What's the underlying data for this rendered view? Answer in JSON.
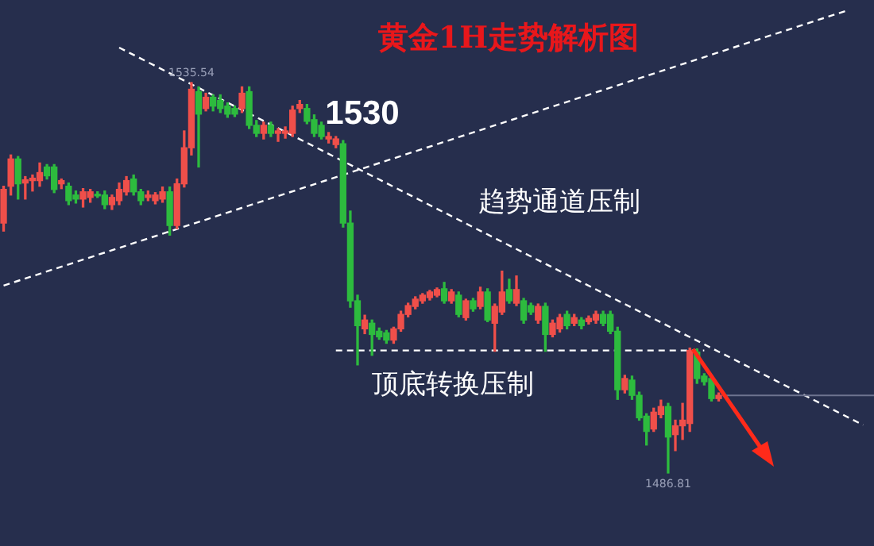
{
  "chart_data": {
    "type": "candlestick",
    "title": "黄金1H走势解析图",
    "categories": [
      null,
      null,
      null,
      null,
      null,
      null,
      null,
      null,
      null,
      null,
      null,
      null,
      null,
      null,
      null,
      null,
      null,
      null,
      null,
      null,
      null,
      null,
      null,
      null,
      null,
      null,
      null,
      null,
      null,
      null,
      null,
      null,
      null,
      null,
      null,
      null,
      null,
      null,
      null,
      null,
      null,
      null,
      null,
      null,
      null,
      null,
      null,
      null,
      null,
      null,
      null,
      null,
      null,
      null,
      null,
      null,
      null,
      null,
      null,
      null,
      null,
      null,
      null,
      null,
      null,
      null,
      null,
      null,
      null,
      null,
      null,
      null,
      null,
      null,
      null,
      null,
      null,
      null,
      null,
      null,
      null,
      null,
      null,
      null,
      null,
      null,
      null,
      null,
      null,
      null,
      null,
      null,
      null,
      null,
      null,
      null,
      null,
      null,
      null,
      null,
      null,
      null,
      null,
      null,
      null,
      null,
      null,
      null,
      null,
      null,
      null,
      null,
      null,
      null,
      null,
      null,
      null,
      null,
      null,
      null,
      null
    ],
    "ohlc": [
      [
        1518.0,
        1522.6,
        1517.0,
        1522.2
      ],
      [
        1522.6,
        1526.5,
        1521.5,
        1526.0
      ],
      [
        1526.0,
        1526.3,
        1521.0,
        1522.9
      ],
      [
        1523.0,
        1523.8,
        1521.0,
        1523.4
      ],
      [
        1523.3,
        1524.0,
        1522.0,
        1523.6
      ],
      [
        1523.3,
        1525.5,
        1522.6,
        1524.3
      ],
      [
        1525.0,
        1525.3,
        1523.5,
        1523.9
      ],
      [
        1525.0,
        1525.3,
        1521.8,
        1522.2
      ],
      [
        1522.9,
        1523.5,
        1522.3,
        1523.3
      ],
      [
        1522.6,
        1523.0,
        1520.3,
        1520.8
      ],
      [
        1521.5,
        1522.0,
        1520.5,
        1521.0
      ],
      [
        1521.0,
        1522.3,
        1520.0,
        1521.9
      ],
      [
        1521.2,
        1522.2,
        1520.6,
        1521.9
      ],
      [
        1521.6,
        1521.9,
        1521.2,
        1521.4
      ],
      [
        1521.5,
        1522.0,
        1519.8,
        1520.3
      ],
      [
        1520.3,
        1521.5,
        1519.7,
        1521.2
      ],
      [
        1520.8,
        1523.0,
        1520.3,
        1522.2
      ],
      [
        1521.9,
        1523.8,
        1521.5,
        1523.3
      ],
      [
        1523.5,
        1524.0,
        1521.5,
        1521.9
      ],
      [
        1521.9,
        1522.2,
        1520.3,
        1520.8
      ],
      [
        1521.2,
        1522.0,
        1520.8,
        1521.5
      ],
      [
        1520.8,
        1521.8,
        1520.4,
        1521.5
      ],
      [
        1521.0,
        1522.5,
        1520.6,
        1521.9
      ],
      [
        1521.9,
        1522.5,
        1516.5,
        1517.7
      ],
      [
        1517.7,
        1523.5,
        1517.3,
        1522.9
      ],
      [
        1522.9,
        1529.5,
        1522.5,
        1527.4
      ],
      [
        1527.4,
        1535.54,
        1526.5,
        1534.7
      ],
      [
        1534.4,
        1535.0,
        1525.0,
        1531.6
      ],
      [
        1532.3,
        1534.2,
        1532.0,
        1533.7
      ],
      [
        1533.7,
        1534.0,
        1532.0,
        1532.6
      ],
      [
        1533.3,
        1534.0,
        1531.8,
        1532.3
      ],
      [
        1532.6,
        1533.0,
        1531.2,
        1531.6
      ],
      [
        1532.3,
        1532.6,
        1531.3,
        1531.6
      ],
      [
        1532.3,
        1535.0,
        1531.8,
        1534.2
      ],
      [
        1534.4,
        1535.0,
        1529.8,
        1530.2
      ],
      [
        1530.2,
        1530.8,
        1528.8,
        1529.2
      ],
      [
        1529.2,
        1530.6,
        1528.5,
        1530.2
      ],
      [
        1530.2,
        1530.6,
        1528.8,
        1529.2
      ],
      [
        1529.2,
        1529.8,
        1528.2,
        1529.5
      ],
      [
        1529.2,
        1530.0,
        1528.6,
        1529.5
      ],
      [
        1529.2,
        1532.6,
        1528.8,
        1532.1
      ],
      [
        1532.3,
        1533.3,
        1531.8,
        1532.8
      ],
      [
        1532.3,
        1532.8,
        1530.4,
        1530.7
      ],
      [
        1530.9,
        1531.5,
        1528.8,
        1529.2
      ],
      [
        1530.2,
        1530.6,
        1528.5,
        1528.8
      ],
      [
        1528.5,
        1529.3,
        1528.0,
        1528.8
      ],
      [
        1527.8,
        1528.8,
        1527.4,
        1528.5
      ],
      [
        1527.9,
        1528.3,
        1517.5,
        1518.0
      ],
      [
        1518.0,
        1519.5,
        1507.5,
        1508.3
      ],
      [
        1508.3,
        1509.0,
        1500.3,
        1505.2
      ],
      [
        1504.8,
        1506.5,
        1504.2,
        1505.9
      ],
      [
        1505.5,
        1505.9,
        1501.5,
        1504.1
      ],
      [
        1504.5,
        1504.9,
        1503.5,
        1503.8
      ],
      [
        1504.3,
        1504.6,
        1503.0,
        1503.4
      ],
      [
        1503.4,
        1505.0,
        1503.0,
        1504.8
      ],
      [
        1504.8,
        1507.0,
        1504.5,
        1506.6
      ],
      [
        1506.6,
        1508.0,
        1506.3,
        1507.7
      ],
      [
        1507.6,
        1508.8,
        1507.3,
        1508.5
      ],
      [
        1508.3,
        1509.2,
        1508.0,
        1509.0
      ],
      [
        1508.7,
        1509.6,
        1508.4,
        1509.4
      ],
      [
        1509.0,
        1509.9,
        1508.8,
        1509.7
      ],
      [
        1509.8,
        1510.6,
        1508.0,
        1508.3
      ],
      [
        1508.3,
        1509.7,
        1508.0,
        1509.4
      ],
      [
        1509.0,
        1509.4,
        1506.3,
        1506.6
      ],
      [
        1506.2,
        1508.5,
        1505.9,
        1508.3
      ],
      [
        1508.3,
        1508.6,
        1507.0,
        1507.3
      ],
      [
        1507.6,
        1510.0,
        1507.3,
        1509.4
      ],
      [
        1509.4,
        1509.8,
        1505.7,
        1505.9
      ],
      [
        1505.5,
        1507.9,
        1502.0,
        1507.6
      ],
      [
        1506.9,
        1512.0,
        1506.6,
        1509.4
      ],
      [
        1509.7,
        1511.0,
        1508.0,
        1508.3
      ],
      [
        1508.0,
        1511.4,
        1507.7,
        1509.7
      ],
      [
        1508.3,
        1508.6,
        1505.5,
        1505.9
      ],
      [
        1507.7,
        1508.0,
        1506.6,
        1506.9
      ],
      [
        1505.9,
        1507.9,
        1505.5,
        1507.6
      ],
      [
        1507.6,
        1508.0,
        1502.0,
        1504.1
      ],
      [
        1504.1,
        1505.9,
        1503.8,
        1505.5
      ],
      [
        1504.8,
        1506.6,
        1504.4,
        1506.2
      ],
      [
        1506.6,
        1507.0,
        1504.8,
        1505.2
      ],
      [
        1505.5,
        1506.6,
        1505.2,
        1506.2
      ],
      [
        1505.9,
        1506.2,
        1504.8,
        1505.2
      ],
      [
        1505.7,
        1506.4,
        1505.4,
        1506.1
      ],
      [
        1505.9,
        1507.0,
        1505.5,
        1506.6
      ],
      [
        1506.6,
        1507.0,
        1505.2,
        1505.5
      ],
      [
        1506.6,
        1507.0,
        1504.2,
        1504.5
      ],
      [
        1504.5,
        1505.0,
        1496.0,
        1497.2
      ],
      [
        1497.2,
        1499.0,
        1496.8,
        1498.6
      ],
      [
        1498.4,
        1498.9,
        1496.0,
        1496.5
      ],
      [
        1496.5,
        1496.9,
        1493.4,
        1493.7
      ],
      [
        1493.9,
        1494.2,
        1490.3,
        1492.0
      ],
      [
        1492.3,
        1494.9,
        1492.0,
        1494.4
      ],
      [
        1494.1,
        1495.9,
        1493.7,
        1495.1
      ],
      [
        1495.1,
        1495.5,
        1486.81,
        1491.3
      ],
      [
        1491.6,
        1493.4,
        1489.6,
        1492.7
      ],
      [
        1492.7,
        1495.5,
        1491.0,
        1493.4
      ],
      [
        1493.0,
        1502.4,
        1492.0,
        1502.1
      ],
      [
        1501.9,
        1502.3,
        1498.0,
        1498.6
      ],
      [
        1498.9,
        1499.2,
        1497.8,
        1498.2
      ],
      [
        1498.6,
        1499.0,
        1495.8,
        1496.1
      ],
      [
        1496.1,
        1496.8,
        1495.8,
        1496.5
      ],
      null,
      null,
      null,
      null,
      null,
      null,
      null,
      null,
      null,
      null,
      null,
      null,
      null,
      null,
      null,
      null,
      null,
      null,
      null,
      null,
      null
    ],
    "series": [
      {
        "type": "line",
        "color": "#ffffff",
        "line_style": "dashed",
        "values": [
          1510.2,
          null,
          null,
          null,
          null,
          null,
          null,
          null,
          null,
          null,
          null,
          null,
          null,
          null,
          null,
          null,
          null,
          null,
          null,
          null,
          null,
          null,
          null,
          null,
          null,
          null,
          null,
          null,
          null,
          null,
          null,
          null,
          null,
          null,
          null,
          null,
          null,
          null,
          null,
          null,
          null,
          null,
          null,
          null,
          null,
          null,
          null,
          null,
          null,
          null,
          null,
          null,
          null,
          null,
          null,
          null,
          null,
          null,
          null,
          null,
          null,
          null,
          null,
          null,
          null,
          null,
          null,
          null,
          null,
          null,
          null,
          null,
          null,
          null,
          null,
          null,
          null,
          null,
          null,
          null,
          null,
          null,
          null,
          null,
          null,
          null,
          null,
          null,
          null,
          null,
          null,
          null,
          null,
          null,
          null,
          null,
          null,
          null,
          null,
          null,
          null,
          null,
          null,
          null,
          null,
          null,
          null,
          null,
          null,
          null,
          null,
          null,
          null,
          null,
          null,
          null,
          null,
          1544.6,
          null,
          null,
          null
        ]
      },
      {
        "type": "line",
        "color": "#ffffff",
        "line_style": "dashed",
        "values": [
          null,
          null,
          null,
          null,
          null,
          null,
          null,
          null,
          null,
          null,
          null,
          null,
          null,
          null,
          null,
          null,
          1539.9,
          null,
          null,
          null,
          null,
          null,
          null,
          null,
          null,
          null,
          null,
          null,
          null,
          null,
          null,
          null,
          null,
          null,
          null,
          null,
          null,
          null,
          null,
          null,
          null,
          null,
          null,
          null,
          null,
          null,
          null,
          null,
          null,
          null,
          null,
          null,
          null,
          null,
          null,
          null,
          null,
          null,
          null,
          null,
          null,
          null,
          null,
          null,
          null,
          null,
          null,
          null,
          null,
          null,
          null,
          null,
          null,
          null,
          null,
          null,
          null,
          null,
          null,
          null,
          null,
          null,
          null,
          null,
          null,
          null,
          null,
          null,
          null,
          null,
          null,
          null,
          null,
          null,
          null,
          null,
          null,
          null,
          null,
          null,
          null,
          null,
          null,
          null,
          null,
          null,
          null,
          null,
          null,
          null,
          null,
          null,
          null,
          null,
          null,
          null,
          null,
          null,
          null,
          1492.8,
          null
        ]
      },
      {
        "type": "line",
        "color": "#ffffff",
        "line_style": "dashed",
        "values": [
          null,
          null,
          null,
          null,
          null,
          null,
          null,
          null,
          null,
          null,
          null,
          null,
          null,
          null,
          null,
          null,
          null,
          null,
          null,
          null,
          null,
          null,
          null,
          null,
          null,
          null,
          null,
          null,
          null,
          null,
          null,
          null,
          null,
          null,
          null,
          null,
          null,
          null,
          null,
          null,
          null,
          null,
          null,
          null,
          null,
          null,
          1502.1,
          null,
          null,
          null,
          null,
          null,
          null,
          null,
          null,
          null,
          null,
          null,
          null,
          null,
          null,
          null,
          null,
          null,
          null,
          null,
          null,
          null,
          null,
          null,
          null,
          null,
          null,
          null,
          null,
          null,
          null,
          null,
          null,
          null,
          null,
          null,
          null,
          null,
          null,
          null,
          null,
          null,
          null,
          null,
          null,
          null,
          null,
          null,
          null,
          null,
          null,
          1502.1,
          null,
          null,
          null,
          null,
          null,
          null,
          null,
          null,
          null,
          null,
          null,
          null,
          null,
          null,
          null,
          null,
          null,
          null,
          null,
          null,
          null,
          null,
          null
        ]
      }
    ],
    "ref_lines": [
      {
        "axis": "y",
        "value": 1496.5,
        "color": "#6e7490"
      }
    ],
    "annotations": [
      {
        "text": "1535.54",
        "y": 1535.54
      },
      {
        "text": "1486.81",
        "y": 1486.81
      },
      "1530",
      "趋势通道压制",
      "顶底转换压制"
    ],
    "legend": false
  }
}
